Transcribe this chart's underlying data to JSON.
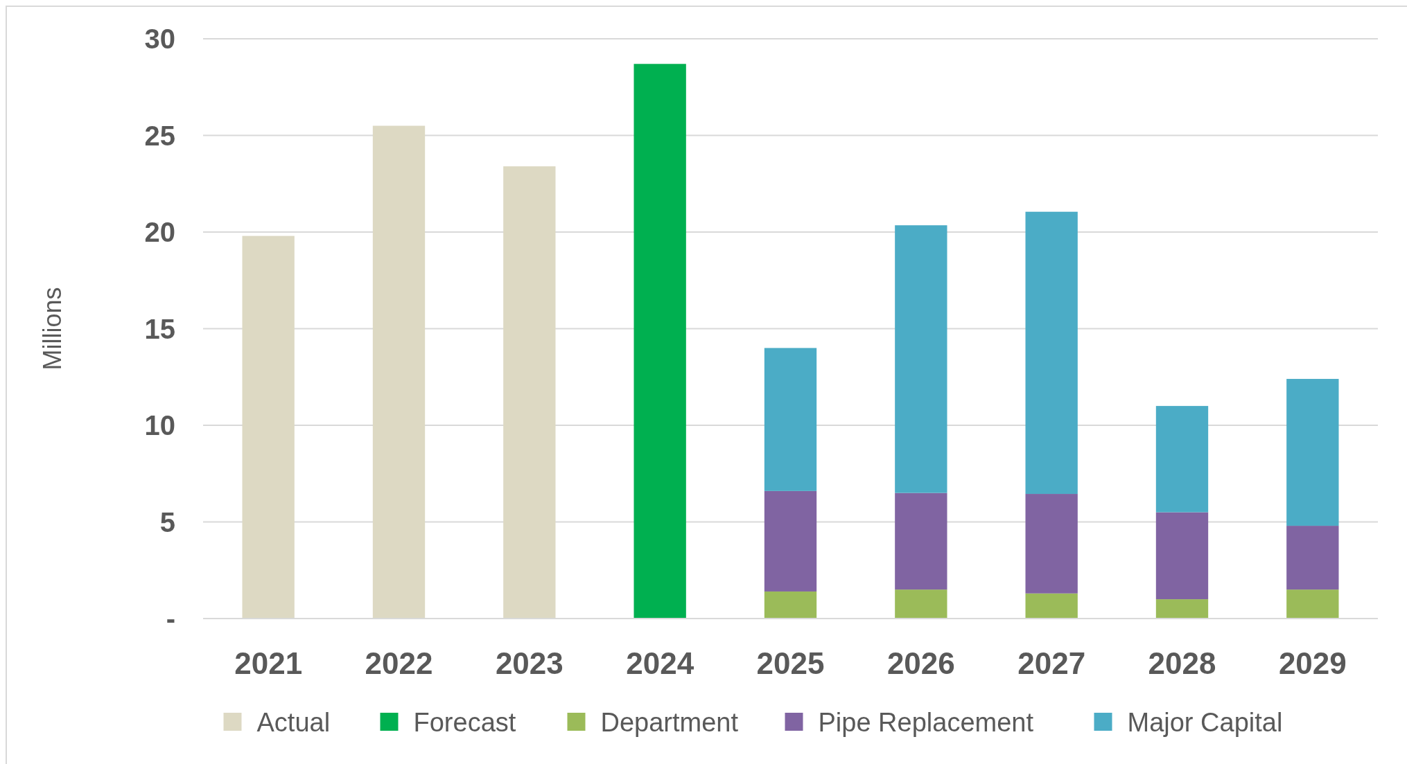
{
  "chart_data": {
    "type": "bar",
    "stacked": true,
    "ylabel": "Millions",
    "categories": [
      "2021",
      "2022",
      "2023",
      "2024",
      "2025",
      "2026",
      "2027",
      "2028",
      "2029"
    ],
    "series": [
      {
        "name": "Actual",
        "color": "#ddd9c3",
        "values": [
          19.8,
          25.5,
          23.4,
          null,
          null,
          null,
          null,
          null,
          null
        ]
      },
      {
        "name": "Forecast",
        "color": "#00b050",
        "values": [
          null,
          null,
          null,
          28.7,
          null,
          null,
          null,
          null,
          null
        ]
      },
      {
        "name": "Department",
        "color": "#9bbb59",
        "values": [
          null,
          null,
          null,
          null,
          1.4,
          1.5,
          1.3,
          1.0,
          1.5
        ]
      },
      {
        "name": "Pipe Replacement",
        "color": "#8064a2",
        "values": [
          null,
          null,
          null,
          null,
          5.2,
          5.0,
          5.15,
          4.5,
          3.3
        ]
      },
      {
        "name": "Major Capital",
        "color": "#4bacc6",
        "values": [
          null,
          null,
          null,
          null,
          7.4,
          13.85,
          14.6,
          5.5,
          7.6
        ]
      }
    ],
    "ylim": [
      0,
      30
    ],
    "yticks": [
      {
        "value": 0,
        "label": "-"
      },
      5,
      10,
      15,
      20,
      25,
      30
    ],
    "grid": "y",
    "legend": "bottom"
  }
}
